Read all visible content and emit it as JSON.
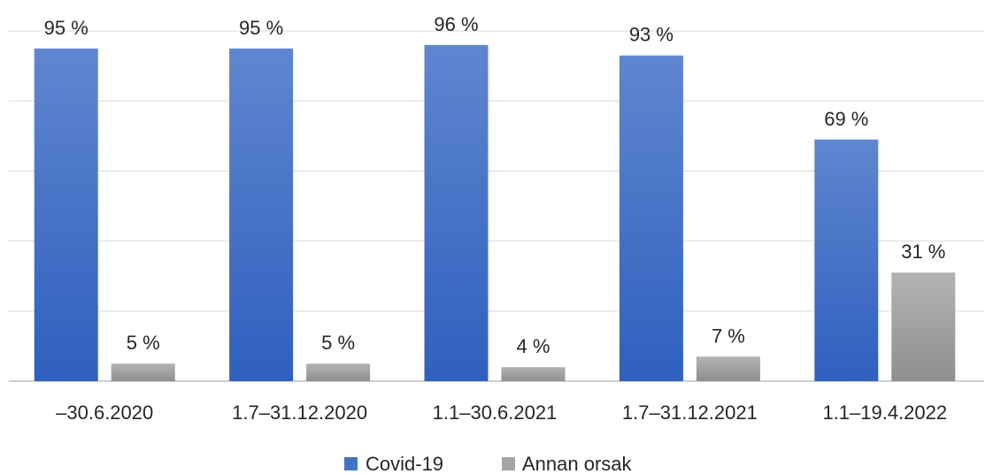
{
  "chart_data": {
    "type": "bar",
    "categories": [
      "–30.6.2020",
      "1.7–31.12.2020",
      "1.1–30.6.2021",
      "1.7–31.12.2021",
      "1.1–19.4.2022"
    ],
    "series": [
      {
        "name": "Covid-19",
        "values": [
          95,
          95,
          96,
          93,
          69
        ],
        "labels": [
          "95 %",
          "95 %",
          "96 %",
          "93 %",
          "69 %"
        ],
        "color": "#4472c4"
      },
      {
        "name": "Annan orsak",
        "values": [
          5,
          5,
          4,
          7,
          31
        ],
        "labels": [
          "5 %",
          "5 %",
          "4 %",
          "7 %",
          "31 %"
        ],
        "color": "#a5a5a5"
      }
    ],
    "ylim": [
      0,
      100
    ],
    "yticks": [
      0,
      20,
      40,
      60,
      80,
      100
    ],
    "grid": true,
    "legend": "bottom-center",
    "title": "",
    "xlabel": "",
    "ylabel": ""
  }
}
